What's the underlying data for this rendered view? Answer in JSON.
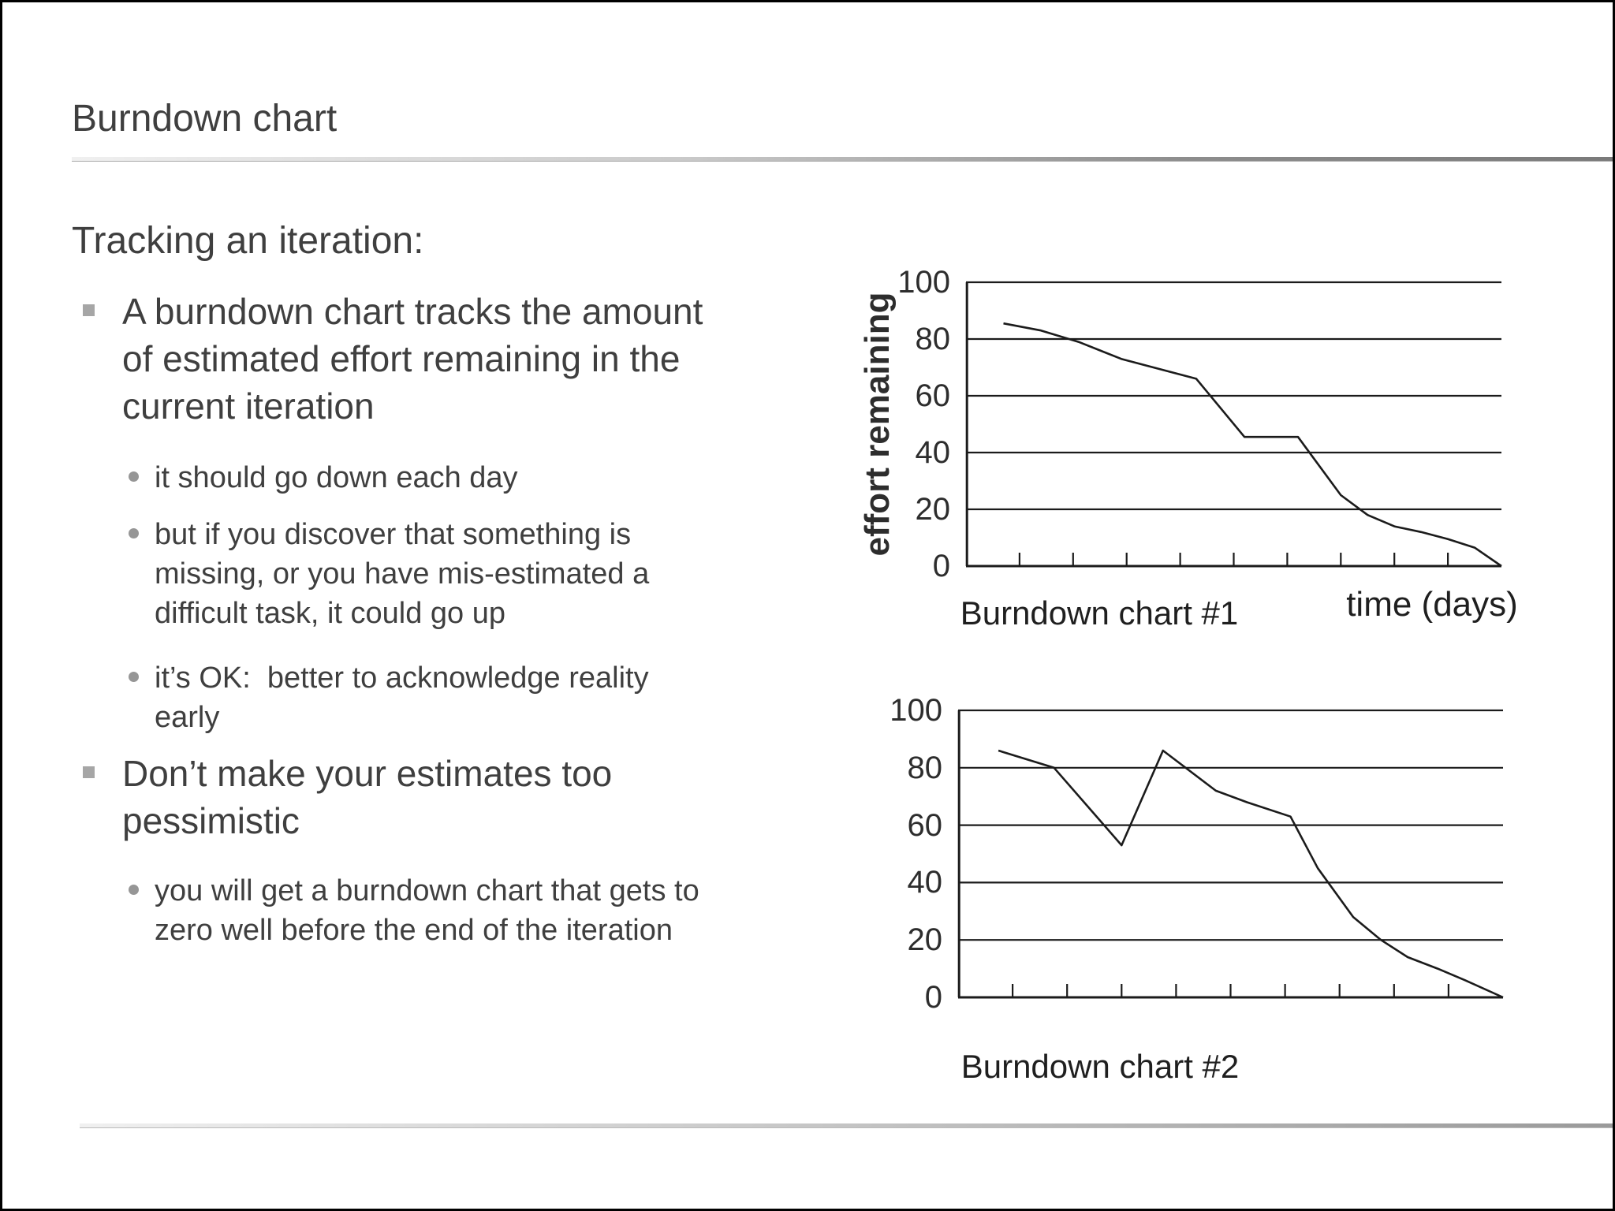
{
  "slide": {
    "title": "Burndown chart",
    "content": [
      {
        "level": 0,
        "lines": [
          "Tracking an iteration:"
        ]
      },
      {
        "level": 1,
        "lines": [
          "A burndown chart tracks the amount",
          "of estimated effort remaining in the",
          "current iteration"
        ]
      },
      {
        "level": 2,
        "lines": [
          "it should go down each day"
        ]
      },
      {
        "level": 2,
        "lines": [
          "but if you discover that something is",
          "missing, or you have mis-estimated a",
          "difficult task, it could go up"
        ]
      },
      {
        "level": 2,
        "lines": [
          "it’s OK:  better to acknowledge reality",
          "early"
        ]
      },
      {
        "level": 1,
        "lines": [
          "Don’t make your estimates too",
          "pessimistic"
        ]
      },
      {
        "level": 2,
        "lines": [
          "you will get a burndown chart that gets to",
          "zero well before the end of the iteration"
        ]
      }
    ]
  },
  "chart_data": [
    {
      "type": "line",
      "title": "Burndown chart #1",
      "xlabel": "time (days)",
      "ylabel": "effort remaining",
      "xlim": [
        0,
        10
      ],
      "ylim": [
        0,
        100
      ],
      "yticks": [
        0,
        20,
        40,
        60,
        80,
        100
      ],
      "xticks": [
        1,
        2,
        3,
        4,
        5,
        6,
        7,
        8,
        9
      ],
      "grid": "horizontal",
      "legend": "none",
      "points": [
        [
          0.7,
          85.5
        ],
        [
          1.4,
          83
        ],
        [
          2.1,
          79
        ],
        [
          2.9,
          73
        ],
        [
          3.4,
          70.5
        ],
        [
          4.3,
          66
        ],
        [
          5.2,
          45.5
        ],
        [
          6.2,
          45.5
        ],
        [
          7.0,
          25
        ],
        [
          7.5,
          18
        ],
        [
          8.0,
          14
        ],
        [
          8.5,
          12
        ],
        [
          9.0,
          9.5
        ],
        [
          9.5,
          6.5
        ],
        [
          10,
          0
        ]
      ]
    },
    {
      "type": "line",
      "title": "Burndown chart #2",
      "xlabel": "",
      "ylabel": "",
      "xlim": [
        0,
        10
      ],
      "ylim": [
        0,
        100
      ],
      "yticks": [
        0,
        20,
        40,
        60,
        80,
        100
      ],
      "xticks": [
        1,
        2,
        3,
        4,
        5,
        6,
        7,
        8,
        9
      ],
      "grid": "horizontal",
      "legend": "none",
      "points": [
        [
          0.74,
          86
        ],
        [
          1.76,
          80
        ],
        [
          3.0,
          53
        ],
        [
          3.76,
          86
        ],
        [
          4.73,
          72
        ],
        [
          5.3,
          68
        ],
        [
          6.1,
          63
        ],
        [
          6.6,
          45
        ],
        [
          7.25,
          28
        ],
        [
          7.76,
          20
        ],
        [
          8.25,
          14
        ],
        [
          8.8,
          10
        ],
        [
          9.3,
          6
        ],
        [
          10,
          0
        ]
      ]
    }
  ],
  "colors": {
    "text": "#3f3f3f",
    "chart_ink": "#1b1b1b",
    "bullet_square": "#a6a6a6",
    "bullet_round": "#969696",
    "rule_light": "#f0f0f0",
    "rule_dark": "#7a7a7a"
  }
}
